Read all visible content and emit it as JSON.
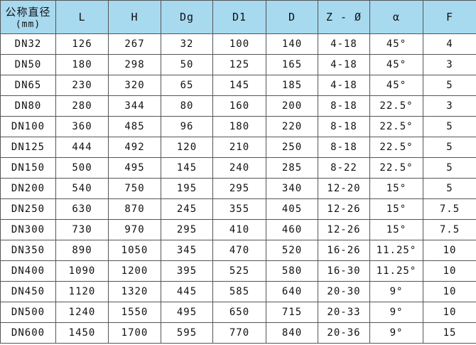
{
  "header_color": "#a7d9ef",
  "columns": [
    {
      "label": "公称直径",
      "sub": "(mm)"
    },
    {
      "label": "L"
    },
    {
      "label": "H"
    },
    {
      "label": "Dg"
    },
    {
      "label": "D1"
    },
    {
      "label": "D"
    },
    {
      "label": "Z - Ø"
    },
    {
      "label": "α"
    },
    {
      "label": "F"
    }
  ],
  "rows": [
    [
      "DN32",
      "126",
      "267",
      "32",
      "100",
      "140",
      "4-18",
      "45°",
      "4"
    ],
    [
      "DN50",
      "180",
      "298",
      "50",
      "125",
      "165",
      "4-18",
      "45°",
      "3"
    ],
    [
      "DN65",
      "230",
      "320",
      "65",
      "145",
      "185",
      "4-18",
      "45°",
      "5"
    ],
    [
      "DN80",
      "280",
      "344",
      "80",
      "160",
      "200",
      "8-18",
      "22.5°",
      "3"
    ],
    [
      "DN100",
      "360",
      "485",
      "96",
      "180",
      "220",
      "8-18",
      "22.5°",
      "5"
    ],
    [
      "DN125",
      "444",
      "492",
      "120",
      "210",
      "250",
      "8-18",
      "22.5°",
      "5"
    ],
    [
      "DN150",
      "500",
      "495",
      "145",
      "240",
      "285",
      "8-22",
      "22.5°",
      "5"
    ],
    [
      "DN200",
      "540",
      "750",
      "195",
      "295",
      "340",
      "12-20",
      "15°",
      "5"
    ],
    [
      "DN250",
      "630",
      "870",
      "245",
      "355",
      "405",
      "12-26",
      "15°",
      "7.5"
    ],
    [
      "DN300",
      "730",
      "970",
      "295",
      "410",
      "460",
      "12-26",
      "15°",
      "7.5"
    ],
    [
      "DN350",
      "890",
      "1050",
      "345",
      "470",
      "520",
      "16-26",
      "11.25°",
      "10"
    ],
    [
      "DN400",
      "1090",
      "1200",
      "395",
      "525",
      "580",
      "16-30",
      "11.25°",
      "10"
    ],
    [
      "DN450",
      "1120",
      "1320",
      "445",
      "585",
      "640",
      "20-30",
      "9°",
      "10"
    ],
    [
      "DN500",
      "1240",
      "1550",
      "495",
      "650",
      "715",
      "20-33",
      "9°",
      "10"
    ],
    [
      "DN600",
      "1450",
      "1700",
      "595",
      "770",
      "840",
      "20-36",
      "9°",
      "15"
    ]
  ]
}
